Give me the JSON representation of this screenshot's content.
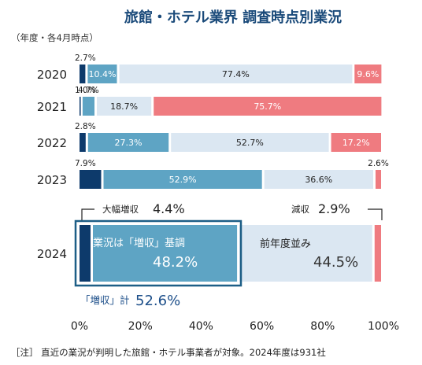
{
  "chart_data": {
    "type": "bar",
    "orientation": "horizontal-stacked-100",
    "title": "旅館・ホテル業界 調査時点別業況",
    "subtitle": "（年度・各4月時点）",
    "categories": [
      "2020",
      "2021",
      "2022",
      "2023",
      "2024"
    ],
    "series": [
      {
        "name": "大幅増収",
        "values": [
          2.7,
          1.0,
          2.8,
          7.9,
          4.4
        ],
        "color": "#0d3a6b"
      },
      {
        "name": "増収",
        "values": [
          10.4,
          4.7,
          27.3,
          52.9,
          48.2
        ],
        "color": "#5ea4c4"
      },
      {
        "name": "前年度並み",
        "values": [
          77.4,
          18.7,
          52.7,
          36.6,
          44.5
        ],
        "color": "#dbe7f2"
      },
      {
        "name": "減収",
        "values": [
          9.6,
          75.7,
          17.2,
          2.6,
          2.9
        ],
        "color": "#ef7b80"
      }
    ],
    "labels_2024": {
      "big_increase": "大幅増収",
      "big_increase_value": "4.4%",
      "increase": "業況は「増収」基調",
      "increase_value": "48.2%",
      "flat": "前年度並み",
      "flat_value": "44.5%",
      "decrease": "減収",
      "decrease_value": "2.9%",
      "total_label": "「増収」計",
      "total_value": "52.6%"
    },
    "xticks": [
      "0%",
      "20%",
      "40%",
      "60%",
      "80%",
      "100%"
    ],
    "xlim": [
      0,
      100
    ],
    "note": "［注］ 直近の業況が判明した旅館・ホテル事業者が対象。2024年度は931社"
  }
}
